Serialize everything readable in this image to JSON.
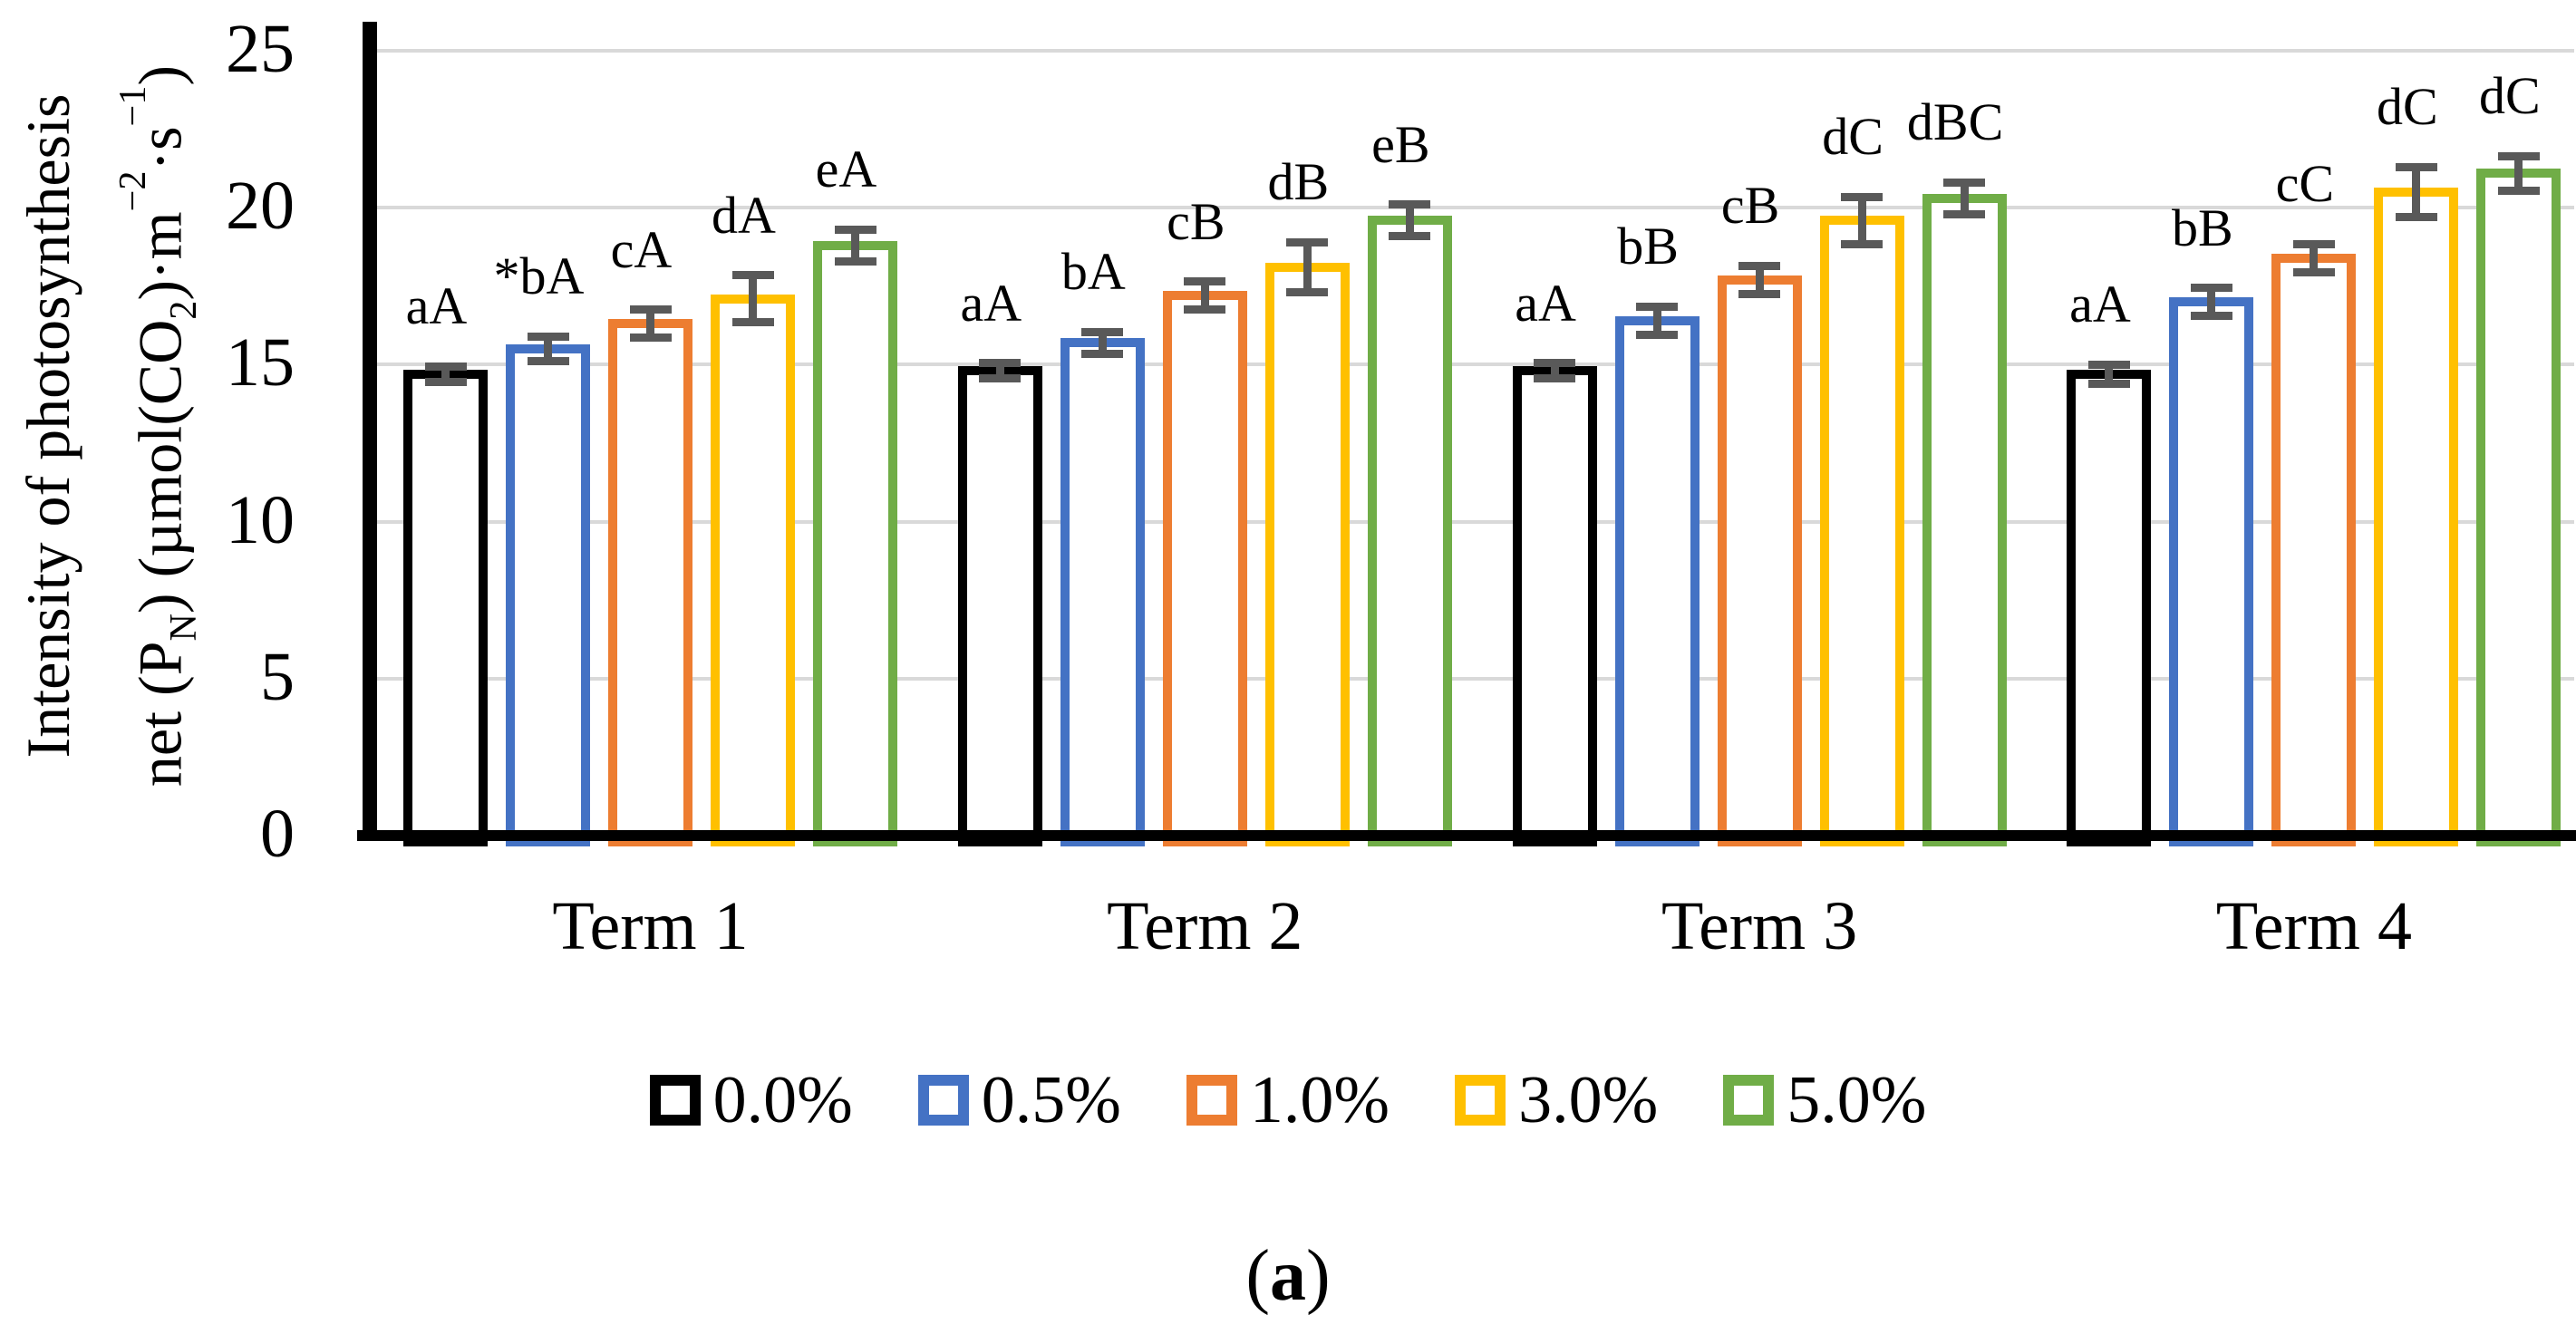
{
  "colors": {
    "axis": "#000000",
    "grid": "#D9D9D9",
    "error_bar": "#595959",
    "background": "#FFFFFF"
  },
  "y_axis": {
    "title_line1": "Intensity of photosynthesis",
    "title_line2_parts": [
      {
        "t": "net (P",
        "f": "n"
      },
      {
        "t": "N",
        "f": "sub"
      },
      {
        "t": ") (µmol(CO",
        "f": "n"
      },
      {
        "t": "2",
        "f": "sub"
      },
      {
        "t": ")·m",
        "f": "n"
      },
      {
        "t": "−2",
        "f": "sup"
      },
      {
        "t": "·s",
        "f": "n"
      },
      {
        "t": "−1",
        "f": "sup"
      },
      {
        "t": ")",
        "f": "n"
      }
    ],
    "ticks": [
      "0",
      "5",
      "10",
      "15",
      "20",
      "25"
    ]
  },
  "chart_data": {
    "type": "bar",
    "title": "",
    "xlabel": "",
    "ylabel": "Intensity of photosynthesis net (PN) (µmol(CO2)·m−2·s−1)",
    "ylim": [
      0,
      25
    ],
    "grid": true,
    "legend_position": "bottom",
    "bar_style": "hollow-outline",
    "categories": [
      "Term 1",
      "Term 2",
      "Term 3",
      "Term 4"
    ],
    "series": [
      {
        "name": "0.0%",
        "color": "#000000",
        "values": [
          14.7,
          14.8,
          14.8,
          14.7
        ],
        "errors": [
          0.25,
          0.25,
          0.25,
          0.3
        ],
        "stat_labels": [
          "aA",
          "aA",
          "aA",
          "aA"
        ]
      },
      {
        "name": "0.5%",
        "color": "#4472C4",
        "values": [
          15.5,
          15.7,
          16.4,
          17.0
        ],
        "errors": [
          0.4,
          0.35,
          0.45,
          0.45
        ],
        "stat_labels": [
          "*bA",
          "bA",
          "bB",
          "bB"
        ]
      },
      {
        "name": "1.0%",
        "color": "#ED7D31",
        "values": [
          16.3,
          17.2,
          17.7,
          18.4
        ],
        "errors": [
          0.45,
          0.45,
          0.45,
          0.45
        ],
        "stat_labels": [
          "cA",
          "cB",
          "cB",
          "cC"
        ]
      },
      {
        "name": "3.0%",
        "color": "#FFC000",
        "values": [
          17.1,
          18.1,
          19.6,
          20.5
        ],
        "errors": [
          0.75,
          0.8,
          0.75,
          0.8
        ],
        "stat_labels": [
          "dA",
          "dB",
          "dC",
          "dC"
        ]
      },
      {
        "name": "5.0%",
        "color": "#70AD47",
        "values": [
          18.8,
          19.6,
          20.3,
          21.1
        ],
        "errors": [
          0.5,
          0.5,
          0.5,
          0.55
        ],
        "stat_labels": [
          "eA",
          "eB",
          "dBC",
          "dC"
        ]
      }
    ]
  },
  "caption": {
    "open": "(",
    "letter": "a",
    "close": ")"
  }
}
